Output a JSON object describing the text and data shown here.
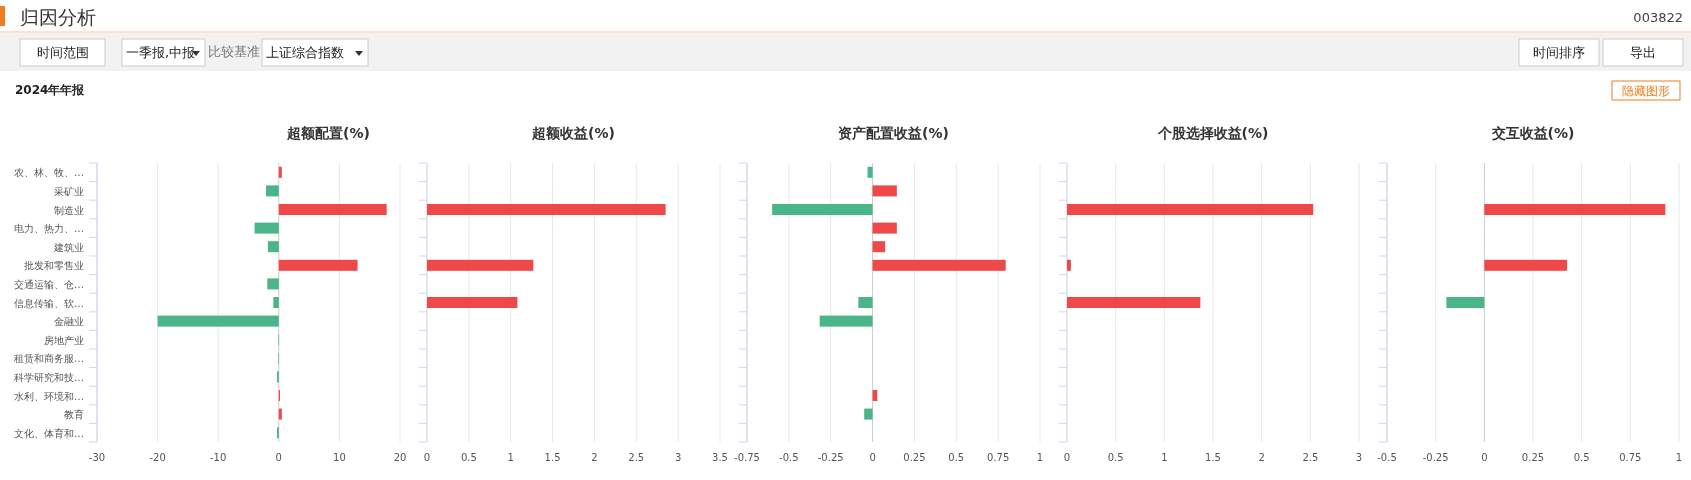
{
  "chart_data": [
    {
      "type": "other",
      "title": "归因分析",
      "annotations": [
        "003822",
        "时间范围",
        "一季报,中报",
        "比较基准",
        "上证综合指数",
        "时间排序",
        "导出",
        "2024年年报",
        "隐藏图形"
      ]
    },
    {
      "type": "bar",
      "orientation": "horizontal",
      "title": "超额配置(%)",
      "categories": [
        "农、林、牧、…",
        "采矿业",
        "制造业",
        "电力、热力、…",
        "建筑业",
        "批发和零售业",
        "交通运输、仓…",
        "信息传输、软…",
        "金融业",
        "房地产业",
        "租赁和商务服…",
        "科学研究和技…",
        "水利、环境和…",
        "教育",
        "文化、体育和…"
      ],
      "values": [
        0.5,
        -2.1,
        17.8,
        -4.0,
        -1.8,
        13.0,
        -1.9,
        -0.9,
        -20.0,
        -0.1,
        -0.1,
        -0.3,
        0.2,
        0.5,
        -0.3
      ],
      "colors": [
        "#ee4848",
        "#4ab588",
        "#ee4848",
        "#4ab588",
        "#4ab588",
        "#ee4848",
        "#4ab588",
        "#4ab588",
        "#4ab588",
        "#4ab588",
        "#4ab588",
        "#4ab588",
        "#ee4848",
        "#ee4848",
        "#4ab588"
      ],
      "xlim": [
        -30,
        20
      ],
      "xticks": [
        -30,
        -20,
        -10,
        0,
        10,
        20
      ],
      "grid": "x"
    },
    {
      "type": "bar",
      "orientation": "horizontal",
      "title": "超额收益(%)",
      "categories": [
        null,
        null,
        null,
        null,
        null,
        null,
        null,
        null,
        null,
        null,
        null,
        null,
        null,
        null,
        null
      ],
      "values": [
        null,
        null,
        2.85,
        null,
        null,
        1.27,
        null,
        1.08,
        null,
        null,
        null,
        null,
        null,
        null,
        null
      ],
      "colors": [
        null,
        null,
        "#ee4848",
        null,
        null,
        "#ee4848",
        null,
        "#ee4848",
        null,
        null,
        null,
        null,
        null,
        null,
        null
      ],
      "xlim": [
        0,
        3.5
      ],
      "xticks": [
        0,
        0.5,
        1,
        1.5,
        2,
        2.5,
        3,
        3.5
      ],
      "grid": "x"
    },
    {
      "type": "bar",
      "orientation": "horizontal",
      "title": "资产配置收益(%)",
      "categories": [
        null,
        null,
        null,
        null,
        null,
        null,
        null,
        null,
        null,
        null,
        null,
        null,
        null,
        null,
        null
      ],
      "values": [
        -0.03,
        0.145,
        -0.6,
        0.145,
        0.075,
        0.795,
        null,
        -0.085,
        -0.316,
        null,
        null,
        null,
        0.028,
        -0.05,
        null
      ],
      "colors": [
        "#4ab588",
        "#ee4848",
        "#4ab588",
        "#ee4848",
        "#ee4848",
        "#ee4848",
        null,
        "#4ab588",
        "#4ab588",
        null,
        null,
        null,
        "#ee4848",
        "#4ab588",
        null
      ],
      "xlim": [
        -0.75,
        1
      ],
      "xticks": [
        -0.75,
        -0.5,
        -0.25,
        0,
        0.25,
        0.5,
        0.75,
        1
      ],
      "grid": "x"
    },
    {
      "type": "bar",
      "orientation": "horizontal",
      "title": "个股选择收益(%)",
      "categories": [
        null,
        null,
        null,
        null,
        null,
        null,
        null,
        null,
        null,
        null,
        null,
        null,
        null,
        null,
        null
      ],
      "values": [
        null,
        null,
        2.53,
        null,
        null,
        0.04,
        null,
        1.37,
        null,
        null,
        null,
        null,
        null,
        null,
        null
      ],
      "colors": [
        null,
        null,
        "#ee4848",
        null,
        null,
        "#ee4848",
        null,
        "#ee4848",
        null,
        null,
        null,
        null,
        null,
        null,
        null
      ],
      "xlim": [
        0,
        3
      ],
      "xticks": [
        0,
        0.5,
        1,
        1.5,
        2,
        2.5,
        3
      ],
      "grid": "x"
    },
    {
      "type": "bar",
      "orientation": "horizontal",
      "title": "交互收益(%)",
      "categories": [
        null,
        null,
        null,
        null,
        null,
        null,
        null,
        null,
        null,
        null,
        null,
        null,
        null,
        null,
        null
      ],
      "values": [
        null,
        null,
        0.93,
        null,
        null,
        0.425,
        null,
        -0.195,
        null,
        null,
        null,
        null,
        null,
        null,
        null
      ],
      "colors": [
        null,
        null,
        "#ee4848",
        null,
        null,
        "#ee4848",
        null,
        "#4ab588",
        null,
        null,
        null,
        null,
        null,
        null,
        null
      ],
      "xlim": [
        -0.5,
        1
      ],
      "xticks": [
        -0.5,
        -0.25,
        0,
        0.25,
        0.5,
        0.75,
        1
      ],
      "grid": "x"
    }
  ]
}
